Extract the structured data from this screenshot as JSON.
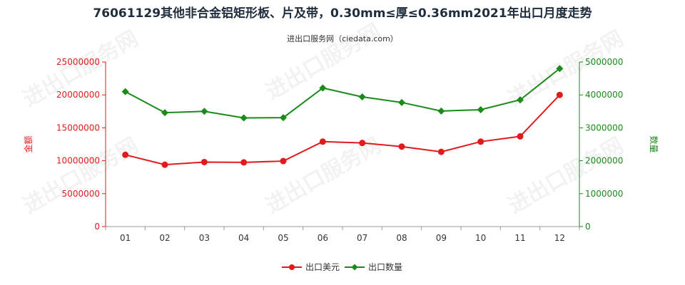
{
  "chart_data": {
    "type": "line",
    "title": "76061129其他非合金铝矩形板、片及带，0.30mm≤厚≤0.36mm2021年出口月度走势",
    "subtitle": "进出口服务网（ciedata.com）",
    "categories": [
      "01",
      "02",
      "03",
      "04",
      "05",
      "06",
      "07",
      "08",
      "09",
      "10",
      "11",
      "12"
    ],
    "left_axis": {
      "label": "金额",
      "range": [
        0,
        25000000
      ],
      "ticks": [
        "0",
        "5000000",
        "10000000",
        "15000000",
        "20000000",
        "25000000"
      ],
      "color": "#e31a1c"
    },
    "right_axis": {
      "label": "数量",
      "range": [
        0,
        5000000
      ],
      "ticks": [
        "0",
        "1000000",
        "2000000",
        "3000000",
        "4000000",
        "5000000"
      ],
      "color": "#1a8a1a"
    },
    "series": [
      {
        "name": "出口美元",
        "axis": "left",
        "color": "#e31a1c",
        "marker": "circle",
        "values": [
          10900000,
          9400000,
          9800000,
          9750000,
          9950000,
          12900000,
          12700000,
          12150000,
          11350000,
          12900000,
          13700000,
          20000000
        ]
      },
      {
        "name": "出口数量",
        "axis": "right",
        "color": "#1a8a1a",
        "marker": "diamond",
        "values": [
          4100000,
          3460000,
          3500000,
          3300000,
          3310000,
          4210000,
          3940000,
          3770000,
          3510000,
          3550000,
          3850000,
          4800000
        ]
      }
    ],
    "legend_position": "bottom-center",
    "grid": false
  },
  "watermark_text": "进出口服务网"
}
